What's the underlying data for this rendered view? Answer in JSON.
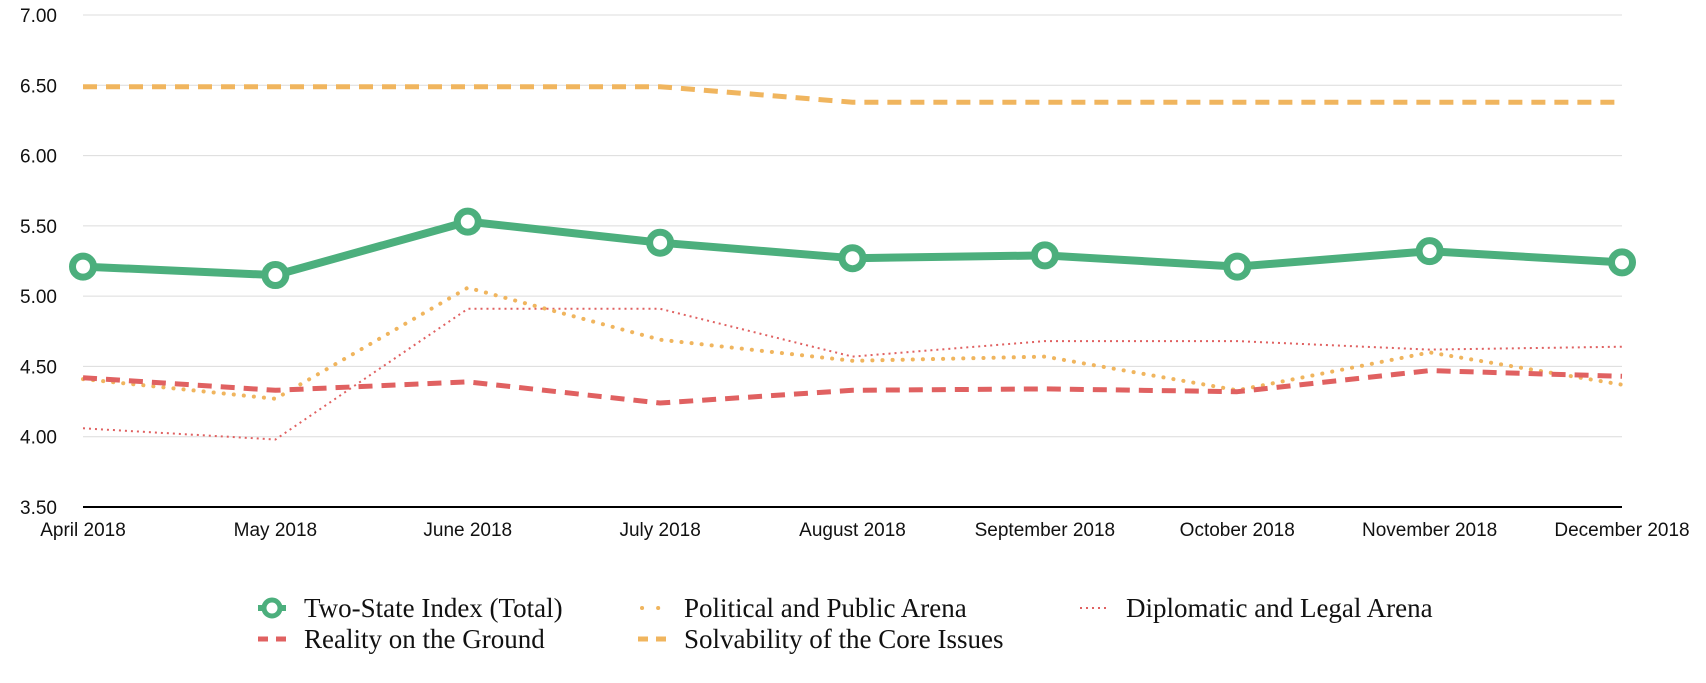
{
  "chart_data": {
    "type": "line",
    "title": "",
    "xlabel": "",
    "ylabel": "",
    "ylim": [
      3.5,
      7.0
    ],
    "yticks": [
      "7.00",
      "6.50",
      "6.00",
      "5.50",
      "5.00",
      "4.50",
      "4.00",
      "3.50"
    ],
    "grid": true,
    "legend_position": "bottom",
    "categories": [
      "April 2018",
      "May 2018",
      "June 2018",
      "July 2018",
      "August 2018",
      "September 2018",
      "October 2018",
      "November 2018",
      "December 2018"
    ],
    "series": [
      {
        "key": "two-state-index-total",
        "name": "Two-State Index (Total)",
        "style": "solid-markers",
        "color": "#4CAF7D",
        "values": [
          5.21,
          5.15,
          5.53,
          5.38,
          5.27,
          5.29,
          5.21,
          5.32,
          5.24
        ]
      },
      {
        "key": "reality-on-the-ground",
        "name": "Reality on the Ground",
        "style": "dashed",
        "color": "#E06161",
        "values": [
          4.42,
          4.33,
          4.39,
          4.24,
          4.33,
          4.34,
          4.32,
          4.47,
          4.43
        ]
      },
      {
        "key": "political-and-public-arena",
        "name": "Political and Public Arena",
        "style": "dotted",
        "color": "#F0B55E",
        "values": [
          4.41,
          4.27,
          5.06,
          4.69,
          4.54,
          4.57,
          4.33,
          4.6,
          4.37
        ]
      },
      {
        "key": "solvability-of-the-core-issues",
        "name": "Solvability of the Core Issues",
        "style": "dashed",
        "color": "#F0B55E",
        "values": [
          6.49,
          6.49,
          6.49,
          6.49,
          6.38,
          6.38,
          6.38,
          6.38,
          6.38
        ]
      },
      {
        "key": "diplomatic-and-legal-arena",
        "name": "Diplomatic and Legal Arena",
        "style": "fine-dotted",
        "color": "#E06161",
        "values": [
          4.06,
          3.98,
          4.91,
          4.91,
          4.57,
          4.68,
          4.68,
          4.62,
          4.64
        ]
      }
    ],
    "legend_order": [
      "two-state-index-total",
      "political-and-public-arena",
      "diplomatic-and-legal-arena",
      "reality-on-the-ground",
      "solvability-of-the-core-issues"
    ]
  }
}
